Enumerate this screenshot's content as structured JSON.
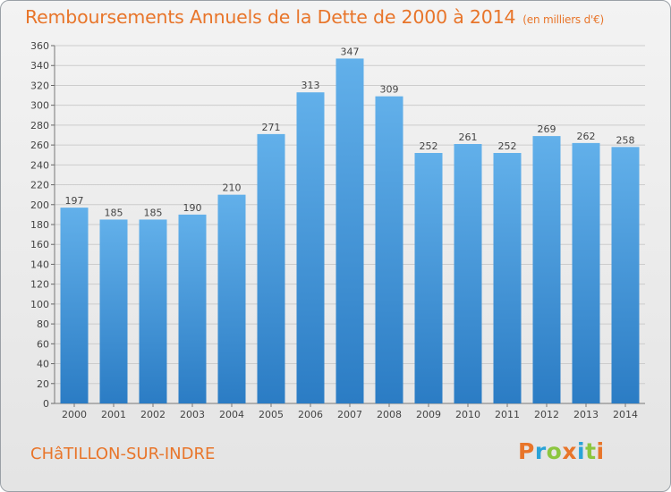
{
  "header": {
    "title": "Remboursements Annuels de la Dette de 2000 à 2014",
    "unit": "(en milliers d'€)"
  },
  "footer": {
    "commune": "CHâTILLON-SUR-INDRE",
    "brand_letters": [
      "P",
      "r",
      "o",
      "x",
      "i",
      "t",
      "i"
    ],
    "brand_colors": [
      "#e8752a",
      "#2aa3d8",
      "#8cc63f",
      "#e8752a",
      "#2aa3d8",
      "#8cc63f",
      "#e8752a"
    ]
  },
  "colors": {
    "bar_top": "#62b0ea",
    "bar_bottom": "#2b7cc4",
    "grid": "#cccccc",
    "accent": "#e8752a"
  },
  "chart_data": {
    "type": "bar",
    "title": "Remboursements Annuels de la Dette de 2000 à 2014",
    "xlabel": "",
    "ylabel": "",
    "categories": [
      "2000",
      "2001",
      "2002",
      "2003",
      "2004",
      "2005",
      "2006",
      "2007",
      "2008",
      "2009",
      "2010",
      "2011",
      "2012",
      "2013",
      "2014"
    ],
    "values": [
      197,
      185,
      185,
      190,
      210,
      271,
      313,
      347,
      309,
      252,
      261,
      252,
      269,
      262,
      258
    ],
    "ylim": [
      0,
      360
    ],
    "ytick_step": 20,
    "grid": true
  }
}
